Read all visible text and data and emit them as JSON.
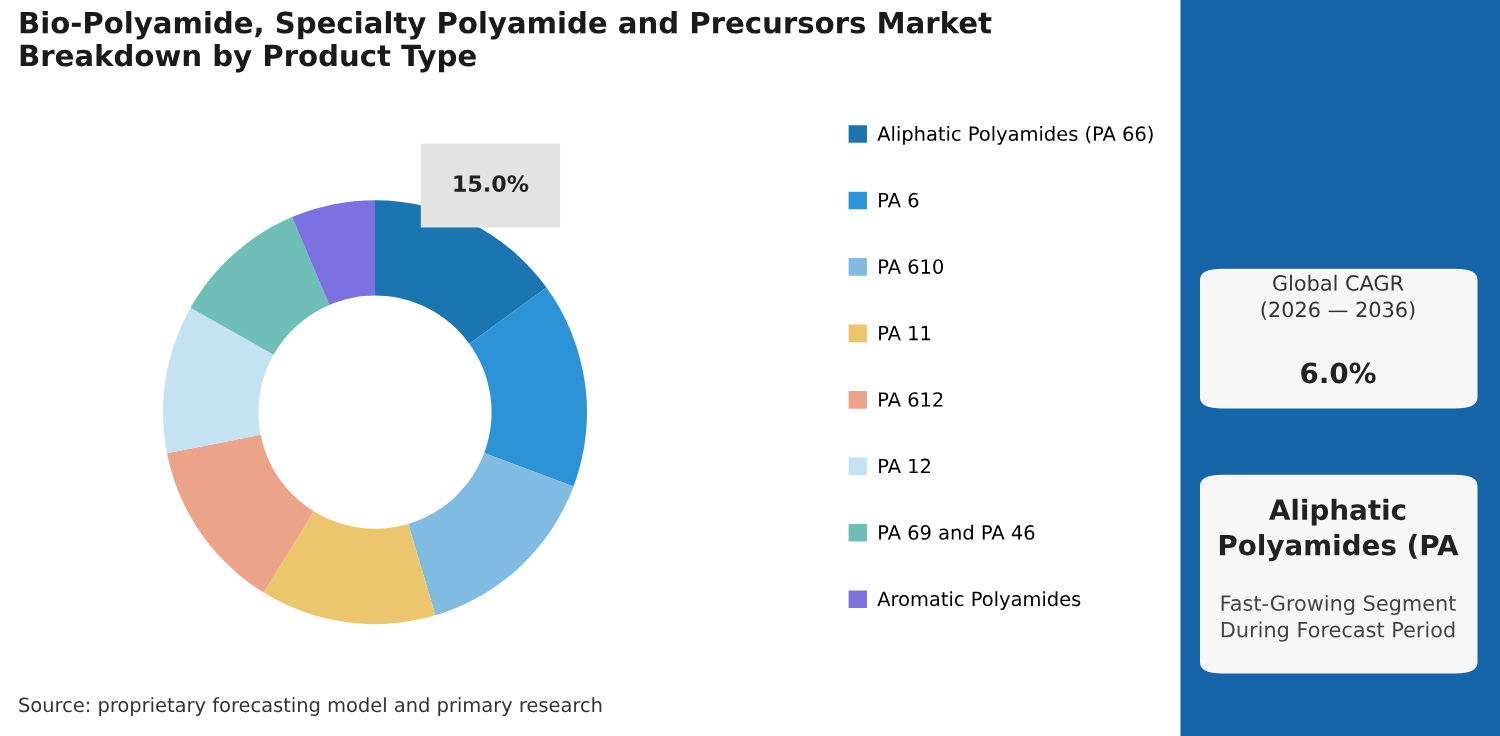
{
  "chart_data": {
    "type": "donut",
    "title": "Bio-Polyamide, Specialty Polyamide and Precursors Market Breakdown by Product Type",
    "categories": [
      "Aliphatic Polyamides (PA 66)",
      "PA 6",
      "PA 610",
      "PA 11",
      "PA 612",
      "PA 12",
      "PA 69 and PA 46",
      "Aromatic Polyamides"
    ],
    "values": [
      15.0,
      15.7,
      14.7,
      13.4,
      13.1,
      11.3,
      10.4,
      6.4
    ],
    "colors": [
      "#1b75b0",
      "#2e93d6",
      "#80bbe1",
      "#ecc66c",
      "#eba38a",
      "#c5e2f3",
      "#6fbfb8",
      "#7c71e0"
    ],
    "value_labels": [
      "15.0%",
      null,
      null,
      null,
      null,
      null,
      null,
      null
    ],
    "legend": "right",
    "annotations": [
      "Global CAGR\n(2026 — 2036)",
      "6.0%",
      "Aliphatic\nPolyamides (PA",
      "Fast-Growing Segment\nDuring Forecast Period",
      "Source: proprietary forecasting model and primary research"
    ]
  }
}
